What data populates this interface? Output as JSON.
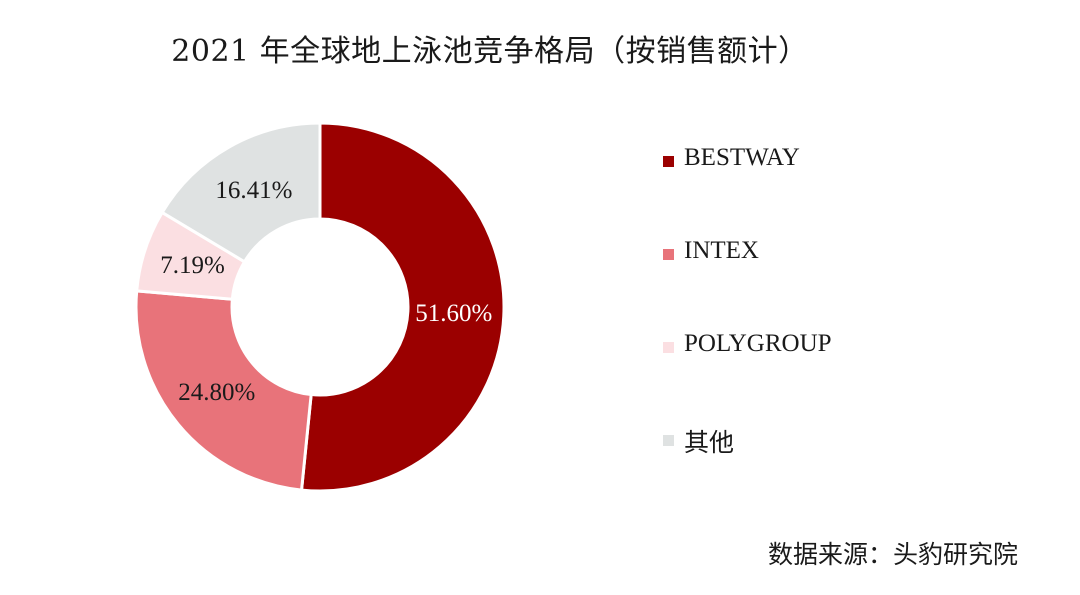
{
  "chart_data": {
    "type": "pie",
    "title": "2021 年全球地上泳池竞争格局（按销售额计）",
    "slices": [
      {
        "name": "BESTWAY",
        "value": 51.6,
        "label": "51.60%",
        "color": "#9b0000",
        "label_color": "#ffffff"
      },
      {
        "name": "INTEX",
        "value": 24.8,
        "label": "24.80%",
        "color": "#e8737a",
        "label_color": "#1a1a1a"
      },
      {
        "name": "POLYGROUP",
        "value": 7.19,
        "label": "7.19%",
        "color": "#fbdfe2",
        "label_color": "#1a1a1a"
      },
      {
        "name": "其他",
        "value": 16.41,
        "label": "16.41%",
        "color": "#dfe2e2",
        "label_color": "#1a1a1a"
      }
    ],
    "hole": "donut",
    "start": "top, clockwise",
    "legend_position": "right"
  },
  "source": "数据来源：头豹研究院"
}
